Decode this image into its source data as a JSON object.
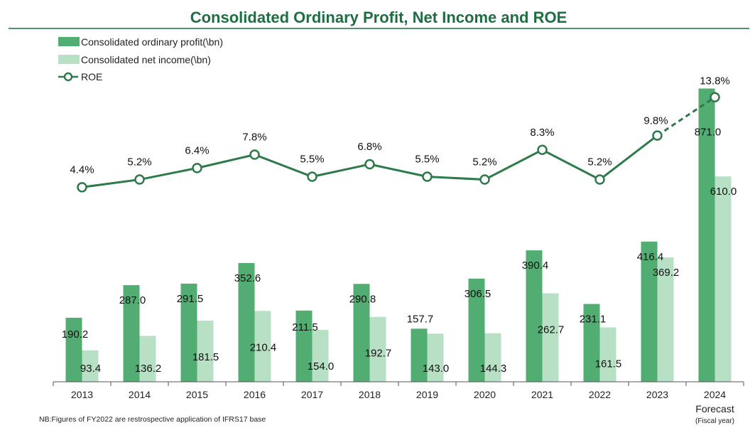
{
  "colors": {
    "title": "#1f6e43",
    "profit": "#52ad72",
    "net_income": "#b7e0c5",
    "roe_line": "#2e7a4b",
    "axis": "#555555"
  },
  "chart_data": {
    "type": "bar",
    "title": "Consolidated Ordinary Profit, Net Income and ROE",
    "categories": [
      "2013",
      "2014",
      "2015",
      "2016",
      "2017",
      "2018",
      "2019",
      "2020",
      "2021",
      "2022",
      "2023",
      "2024"
    ],
    "category_sublabels": [
      "",
      "",
      "",
      "",
      "",
      "",
      "",
      "",
      "",
      "",
      "",
      "Forecast"
    ],
    "xlabel_note": "(Fiscal year)",
    "series": [
      {
        "name": "Consolidated ordinary profit(\\bn)",
        "type": "bar",
        "values": [
          190.2,
          287.0,
          291.5,
          352.6,
          211.5,
          290.8,
          157.7,
          306.5,
          390.4,
          231.1,
          416.4,
          871.0
        ],
        "labels": [
          "190.2",
          "287.0",
          "291.5",
          "352.6",
          "211.5",
          "290.8",
          "157.7",
          "306.5",
          "390.4",
          "231.1",
          "416.4",
          "871.0"
        ]
      },
      {
        "name": "Consolidated net income(\\bn)",
        "type": "bar",
        "values": [
          93.4,
          136.2,
          181.5,
          210.4,
          154.0,
          192.7,
          143.0,
          144.3,
          262.7,
          161.5,
          369.2,
          610.0
        ],
        "labels": [
          "93.4",
          "136.2",
          "181.5",
          "210.4",
          "154.0",
          "192.7",
          "143.0",
          "144.3",
          "262.7",
          "161.5",
          "369.2",
          "610.0"
        ]
      },
      {
        "name": "ROE",
        "type": "line",
        "values": [
          4.4,
          5.2,
          6.4,
          7.8,
          5.5,
          6.8,
          5.5,
          5.2,
          8.3,
          5.2,
          9.8,
          13.8
        ],
        "labels": [
          "4.4%",
          "5.2%",
          "6.4%",
          "7.8%",
          "5.5%",
          "6.8%",
          "5.5%",
          "5.2%",
          "8.3%",
          "5.2%",
          "9.8%",
          "13.8%"
        ],
        "dashed_last_segment": true
      }
    ],
    "legend_position": "top-left",
    "grid": false
  },
  "footnote": "NB:Figures of FY2022 are restrospective application of IFRS17 base"
}
